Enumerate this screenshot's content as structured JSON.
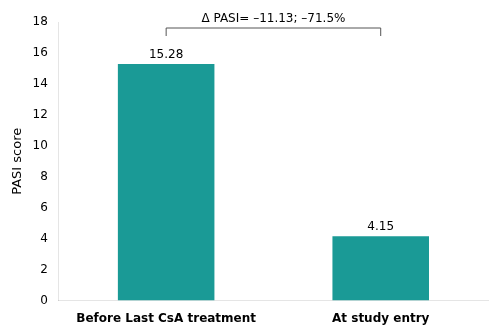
{
  "chart_data": {
    "type": "bar",
    "categories": [
      "Before Last CsA treatment",
      "At study entry"
    ],
    "values": [
      15.28,
      4.15
    ],
    "color": "#1a9a96",
    "ylabel": "PASI score",
    "ylim": [
      0,
      18
    ],
    "yticks": [
      0,
      2,
      4,
      6,
      8,
      10,
      12,
      14,
      16,
      18
    ],
    "data_labels": true,
    "annotation": "Δ PASI= –11.13; –71.5%",
    "grid": false
  }
}
